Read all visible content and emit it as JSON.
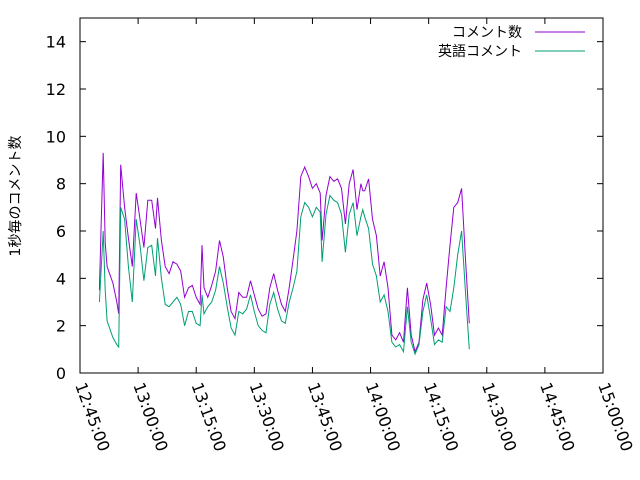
{
  "chart_data": {
    "type": "line",
    "title": "",
    "xlabel": "",
    "ylabel": "1秒毎のコメント数",
    "ylim": [
      0,
      15
    ],
    "xlim": [
      "12:45:00",
      "15:00:00"
    ],
    "yticks": [
      0,
      2,
      4,
      6,
      8,
      10,
      12,
      14
    ],
    "xticks": [
      "12:45:00",
      "13:00:00",
      "13:15:00",
      "13:30:00",
      "13:45:00",
      "14:00:00",
      "14:15:00",
      "14:30:00",
      "14:45:00",
      "15:00:00"
    ],
    "grid": false,
    "legend_position": "top-right",
    "series": [
      {
        "name": "コメント数",
        "color": "#9400d3",
        "points": [
          [
            "12:50:00",
            3.5
          ],
          [
            "12:50:30",
            6.5
          ],
          [
            "12:51:00",
            9.3
          ],
          [
            "12:51:30",
            5.5
          ],
          [
            "12:52:00",
            4.5
          ],
          [
            "12:53:30",
            3.8
          ],
          [
            "12:54:30",
            3.0
          ],
          [
            "12:55:00",
            2.5
          ],
          [
            "12:55:30",
            8.8
          ],
          [
            "12:56:30",
            7.0
          ],
          [
            "12:57:30",
            5.7
          ],
          [
            "12:58:30",
            4.5
          ],
          [
            "12:59:30",
            7.6
          ],
          [
            "13:00:30",
            6.5
          ],
          [
            "13:01:30",
            5.3
          ],
          [
            "13:02:30",
            7.3
          ],
          [
            "13:03:30",
            7.3
          ],
          [
            "13:04:30",
            6.1
          ],
          [
            "13:05:00",
            7.4
          ],
          [
            "13:06:00",
            5.6
          ],
          [
            "13:07:00",
            4.5
          ],
          [
            "13:08:00",
            4.2
          ],
          [
            "13:09:00",
            4.7
          ],
          [
            "13:10:00",
            4.6
          ],
          [
            "13:11:00",
            4.3
          ],
          [
            "13:12:00",
            3.2
          ],
          [
            "13:13:00",
            3.6
          ],
          [
            "13:14:00",
            3.7
          ],
          [
            "13:15:00",
            3.2
          ],
          [
            "13:16:00",
            2.9
          ],
          [
            "13:16:30",
            5.4
          ],
          [
            "13:17:00",
            3.6
          ],
          [
            "13:18:00",
            3.2
          ],
          [
            "13:19:00",
            3.7
          ],
          [
            "13:20:00",
            4.3
          ],
          [
            "13:21:00",
            5.6
          ],
          [
            "13:22:00",
            4.9
          ],
          [
            "13:23:00",
            3.6
          ],
          [
            "13:24:00",
            2.6
          ],
          [
            "13:25:00",
            2.3
          ],
          [
            "13:26:00",
            3.4
          ],
          [
            "13:27:00",
            3.2
          ],
          [
            "13:28:00",
            3.2
          ],
          [
            "13:29:00",
            3.9
          ],
          [
            "13:30:00",
            3.3
          ],
          [
            "13:31:00",
            2.7
          ],
          [
            "13:32:00",
            2.4
          ],
          [
            "13:33:00",
            2.5
          ],
          [
            "13:34:00",
            3.6
          ],
          [
            "13:35:00",
            4.2
          ],
          [
            "13:36:00",
            3.5
          ],
          [
            "13:37:00",
            2.9
          ],
          [
            "13:38:00",
            2.6
          ],
          [
            "13:39:00",
            3.6
          ],
          [
            "13:40:00",
            4.8
          ],
          [
            "13:41:00",
            6.0
          ],
          [
            "13:42:00",
            8.3
          ],
          [
            "13:43:00",
            8.7
          ],
          [
            "13:44:00",
            8.3
          ],
          [
            "13:45:00",
            7.8
          ],
          [
            "13:46:00",
            8.0
          ],
          [
            "13:47:00",
            7.6
          ],
          [
            "13:47:30",
            5.6
          ],
          [
            "13:48:30",
            7.5
          ],
          [
            "13:49:30",
            8.3
          ],
          [
            "13:50:30",
            8.1
          ],
          [
            "13:51:30",
            8.2
          ],
          [
            "13:52:30",
            7.8
          ],
          [
            "13:53:30",
            6.3
          ],
          [
            "13:54:30",
            8.0
          ],
          [
            "13:55:30",
            8.6
          ],
          [
            "13:56:30",
            6.9
          ],
          [
            "13:57:30",
            8.0
          ],
          [
            "13:58:00",
            7.7
          ],
          [
            "13:58:30",
            7.7
          ],
          [
            "13:59:30",
            8.2
          ],
          [
            "14:00:30",
            6.5
          ],
          [
            "14:01:30",
            5.8
          ],
          [
            "14:02:30",
            4.1
          ],
          [
            "14:03:30",
            4.7
          ],
          [
            "14:04:30",
            3.6
          ],
          [
            "14:05:30",
            1.6
          ],
          [
            "14:06:30",
            1.4
          ],
          [
            "14:07:30",
            1.7
          ],
          [
            "14:08:30",
            1.3
          ],
          [
            "14:09:30",
            3.6
          ],
          [
            "14:10:30",
            1.6
          ],
          [
            "14:11:30",
            0.9
          ],
          [
            "14:12:30",
            1.3
          ],
          [
            "14:13:30",
            3.1
          ],
          [
            "14:14:30",
            3.8
          ],
          [
            "14:15:30",
            2.9
          ],
          [
            "14:16:30",
            1.6
          ],
          [
            "14:17:30",
            1.9
          ],
          [
            "14:18:30",
            1.6
          ],
          [
            "14:19:30",
            3.6
          ],
          [
            "14:20:30",
            5.4
          ],
          [
            "14:21:30",
            7.0
          ],
          [
            "14:22:30",
            7.2
          ],
          [
            "14:23:30",
            7.8
          ],
          [
            "14:24:30",
            4.8
          ],
          [
            "14:25:30",
            2.1
          ]
        ]
      },
      {
        "name": "英語コメント",
        "color": "#009e73",
        "points": [
          [
            "12:50:00",
            3.0
          ],
          [
            "12:50:30",
            4.5
          ],
          [
            "12:51:00",
            6.0
          ],
          [
            "12:51:30",
            3.5
          ],
          [
            "12:52:00",
            2.2
          ],
          [
            "12:53:30",
            1.5
          ],
          [
            "12:54:30",
            1.2
          ],
          [
            "12:55:00",
            1.1
          ],
          [
            "12:55:30",
            7.0
          ],
          [
            "12:56:30",
            6.5
          ],
          [
            "12:57:30",
            4.5
          ],
          [
            "12:58:30",
            3.0
          ],
          [
            "12:59:30",
            6.5
          ],
          [
            "13:00:30",
            5.4
          ],
          [
            "13:01:30",
            3.9
          ],
          [
            "13:02:30",
            5.3
          ],
          [
            "13:03:30",
            5.4
          ],
          [
            "13:04:30",
            4.1
          ],
          [
            "13:05:00",
            5.7
          ],
          [
            "13:06:00",
            4.0
          ],
          [
            "13:07:00",
            2.9
          ],
          [
            "13:08:00",
            2.8
          ],
          [
            "13:09:00",
            3.0
          ],
          [
            "13:10:00",
            3.2
          ],
          [
            "13:11:00",
            2.9
          ],
          [
            "13:12:00",
            2.0
          ],
          [
            "13:13:00",
            2.6
          ],
          [
            "13:14:00",
            2.6
          ],
          [
            "13:15:00",
            2.1
          ],
          [
            "13:16:00",
            2.0
          ],
          [
            "13:16:30",
            3.3
          ],
          [
            "13:17:00",
            2.5
          ],
          [
            "13:18:00",
            2.8
          ],
          [
            "13:19:00",
            3.0
          ],
          [
            "13:20:00",
            3.5
          ],
          [
            "13:21:00",
            4.5
          ],
          [
            "13:22:00",
            3.8
          ],
          [
            "13:23:00",
            2.8
          ],
          [
            "13:24:00",
            1.9
          ],
          [
            "13:25:00",
            1.6
          ],
          [
            "13:26:00",
            2.6
          ],
          [
            "13:27:00",
            2.5
          ],
          [
            "13:28:00",
            2.7
          ],
          [
            "13:29:00",
            3.3
          ],
          [
            "13:30:00",
            2.6
          ],
          [
            "13:31:00",
            2.0
          ],
          [
            "13:32:00",
            1.8
          ],
          [
            "13:33:00",
            1.7
          ],
          [
            "13:34:00",
            2.9
          ],
          [
            "13:35:00",
            3.4
          ],
          [
            "13:36:00",
            2.7
          ],
          [
            "13:37:00",
            2.2
          ],
          [
            "13:38:00",
            2.1
          ],
          [
            "13:39:00",
            3.0
          ],
          [
            "13:40:00",
            3.6
          ],
          [
            "13:41:00",
            4.3
          ],
          [
            "13:42:00",
            6.6
          ],
          [
            "13:43:00",
            7.2
          ],
          [
            "13:44:00",
            7.0
          ],
          [
            "13:45:00",
            6.6
          ],
          [
            "13:46:00",
            7.0
          ],
          [
            "13:47:00",
            6.8
          ],
          [
            "13:47:30",
            4.7
          ],
          [
            "13:48:30",
            6.7
          ],
          [
            "13:49:30",
            7.5
          ],
          [
            "13:50:30",
            7.3
          ],
          [
            "13:51:30",
            7.2
          ],
          [
            "13:52:30",
            6.7
          ],
          [
            "13:53:30",
            5.1
          ],
          [
            "13:54:30",
            6.7
          ],
          [
            "13:55:30",
            7.2
          ],
          [
            "13:56:30",
            5.8
          ],
          [
            "13:57:30",
            6.6
          ],
          [
            "13:58:00",
            6.9
          ],
          [
            "13:58:30",
            6.6
          ],
          [
            "13:59:30",
            6.1
          ],
          [
            "14:00:30",
            4.6
          ],
          [
            "14:01:30",
            4.1
          ],
          [
            "14:02:30",
            3.0
          ],
          [
            "14:03:30",
            3.3
          ],
          [
            "14:04:30",
            2.6
          ],
          [
            "14:05:30",
            1.3
          ],
          [
            "14:06:30",
            1.1
          ],
          [
            "14:07:30",
            1.2
          ],
          [
            "14:08:30",
            0.9
          ],
          [
            "14:09:30",
            2.8
          ],
          [
            "14:10:30",
            1.3
          ],
          [
            "14:11:30",
            0.8
          ],
          [
            "14:12:30",
            1.2
          ],
          [
            "14:13:30",
            2.6
          ],
          [
            "14:14:30",
            3.3
          ],
          [
            "14:15:30",
            2.3
          ],
          [
            "14:16:30",
            1.2
          ],
          [
            "14:17:30",
            1.4
          ],
          [
            "14:18:30",
            1.3
          ],
          [
            "14:19:30",
            2.8
          ],
          [
            "14:20:30",
            2.6
          ],
          [
            "14:21:30",
            3.6
          ],
          [
            "14:22:30",
            5.0
          ],
          [
            "14:23:30",
            6.0
          ],
          [
            "14:24:30",
            3.4
          ],
          [
            "14:25:30",
            1.0
          ]
        ]
      }
    ]
  }
}
